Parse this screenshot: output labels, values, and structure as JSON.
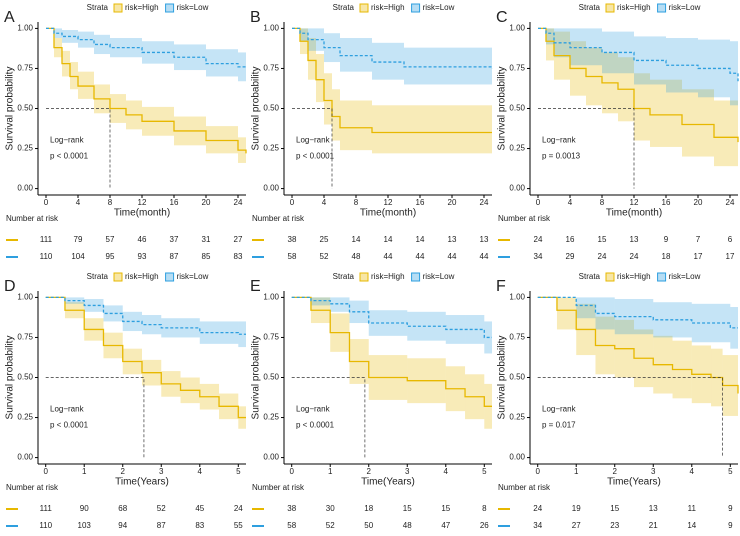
{
  "chart_data": [
    {
      "type": "line",
      "panel": "A",
      "legend_title": "Strata",
      "xlabel": "Time(month)",
      "ylabel": "Survival probability",
      "xlim": [
        -1,
        25
      ],
      "ylim": [
        -0.04,
        1.04
      ],
      "xticks": [
        0,
        4,
        8,
        12,
        16,
        20,
        24
      ],
      "yticks": [
        {
          "value": 0,
          "label": "0.00"
        },
        {
          "value": 0.25,
          "label": "0.25"
        },
        {
          "value": 0.5,
          "label": "0.50"
        },
        {
          "value": 0.75,
          "label": "0.75"
        },
        {
          "value": 1,
          "label": "1.00"
        }
      ],
      "test": "Log−rank",
      "pvalue": "p < 0.0001",
      "median": {
        "x": 8,
        "y": 0.5
      },
      "risk_title": "Number at risk",
      "series": [
        {
          "name": "risk=High",
          "color": "#E7B800",
          "x": [
            0,
            1,
            2,
            3,
            4,
            6,
            8,
            10,
            12,
            16,
            20,
            24,
            25
          ],
          "values": [
            1,
            0.88,
            0.78,
            0.7,
            0.64,
            0.56,
            0.5,
            0.46,
            0.42,
            0.36,
            0.3,
            0.24,
            0.22
          ],
          "lower": [
            1,
            0.82,
            0.7,
            0.62,
            0.56,
            0.47,
            0.41,
            0.37,
            0.33,
            0.27,
            0.22,
            0.16,
            0.15
          ],
          "upper": [
            1,
            0.94,
            0.86,
            0.79,
            0.73,
            0.65,
            0.59,
            0.55,
            0.51,
            0.45,
            0.39,
            0.32,
            0.3
          ],
          "risk": [
            111,
            79,
            57,
            46,
            37,
            31,
            27
          ]
        },
        {
          "name": "risk=Low",
          "color": "#2E9FDF",
          "x": [
            0,
            1,
            2,
            4,
            6,
            8,
            12,
            16,
            20,
            24,
            25
          ],
          "values": [
            1,
            0.97,
            0.95,
            0.93,
            0.9,
            0.88,
            0.85,
            0.82,
            0.78,
            0.76,
            0.76
          ],
          "lower": [
            1,
            0.94,
            0.91,
            0.88,
            0.84,
            0.82,
            0.78,
            0.74,
            0.7,
            0.67,
            0.67
          ],
          "upper": [
            1,
            1,
            0.99,
            0.98,
            0.96,
            0.94,
            0.92,
            0.9,
            0.87,
            0.85,
            0.85
          ],
          "risk": [
            110,
            104,
            95,
            93,
            87,
            85,
            83
          ]
        }
      ]
    },
    {
      "type": "line",
      "panel": "B",
      "legend_title": "Strata",
      "xlabel": "Time(month)",
      "ylabel": "Survival probability",
      "xlim": [
        -1,
        25
      ],
      "ylim": [
        -0.04,
        1.04
      ],
      "xticks": [
        0,
        4,
        8,
        12,
        16,
        20,
        24
      ],
      "yticks": [
        {
          "value": 0,
          "label": "0.00"
        },
        {
          "value": 0.25,
          "label": "0.25"
        },
        {
          "value": 0.5,
          "label": "0.50"
        },
        {
          "value": 0.75,
          "label": "0.75"
        },
        {
          "value": 1,
          "label": "1.00"
        }
      ],
      "test": "Log−rank",
      "pvalue": "p < 0.0001",
      "median": {
        "x": 5,
        "y": 0.5
      },
      "risk_title": "Number at risk",
      "series": [
        {
          "name": "risk=High",
          "color": "#E7B800",
          "x": [
            0,
            1,
            2,
            3,
            4,
            5,
            6,
            10,
            24,
            25
          ],
          "values": [
            1,
            0.92,
            0.8,
            0.68,
            0.55,
            0.45,
            0.38,
            0.35,
            0.35,
            0.35
          ],
          "lower": [
            1,
            0.84,
            0.68,
            0.54,
            0.4,
            0.3,
            0.24,
            0.22,
            0.22,
            0.22
          ],
          "upper": [
            1,
            1,
            0.94,
            0.84,
            0.72,
            0.62,
            0.55,
            0.52,
            0.52,
            0.52
          ],
          "risk": [
            38,
            25,
            14,
            14,
            14,
            13,
            13
          ]
        },
        {
          "name": "risk=Low",
          "color": "#2E9FDF",
          "x": [
            0,
            1,
            2,
            4,
            6,
            10,
            14,
            24,
            25
          ],
          "values": [
            1,
            0.97,
            0.93,
            0.88,
            0.83,
            0.79,
            0.76,
            0.76,
            0.75
          ],
          "lower": [
            1,
            0.92,
            0.86,
            0.79,
            0.73,
            0.68,
            0.65,
            0.65,
            0.64
          ],
          "upper": [
            1,
            1,
            1,
            0.97,
            0.94,
            0.91,
            0.88,
            0.88,
            0.87
          ],
          "risk": [
            58,
            52,
            48,
            44,
            44,
            44,
            44
          ]
        }
      ]
    },
    {
      "type": "line",
      "panel": "C",
      "legend_title": "Strata",
      "xlabel": "Time(month)",
      "ylabel": "Survival probability",
      "xlim": [
        -1,
        25
      ],
      "ylim": [
        -0.04,
        1.04
      ],
      "xticks": [
        0,
        4,
        8,
        12,
        16,
        20,
        24
      ],
      "yticks": [
        {
          "value": 0,
          "label": "0.00"
        },
        {
          "value": 0.25,
          "label": "0.25"
        },
        {
          "value": 0.5,
          "label": "0.50"
        },
        {
          "value": 0.75,
          "label": "0.75"
        },
        {
          "value": 1,
          "label": "1.00"
        }
      ],
      "test": "Log−rank",
      "pvalue": "p = 0.0013",
      "median": {
        "x": 12,
        "y": 0.5
      },
      "risk_title": "Number at risk",
      "series": [
        {
          "name": "risk=High",
          "color": "#E7B800",
          "x": [
            0,
            1,
            2,
            4,
            6,
            8,
            10,
            12,
            14,
            18,
            22,
            25
          ],
          "values": [
            1,
            0.92,
            0.83,
            0.75,
            0.7,
            0.66,
            0.62,
            0.5,
            0.46,
            0.4,
            0.32,
            0.29
          ],
          "lower": [
            1,
            0.8,
            0.68,
            0.58,
            0.52,
            0.47,
            0.42,
            0.3,
            0.26,
            0.2,
            0.14,
            0.1
          ],
          "upper": [
            1,
            1,
            0.98,
            0.92,
            0.88,
            0.85,
            0.82,
            0.72,
            0.68,
            0.62,
            0.55,
            0.52
          ],
          "risk": [
            24,
            16,
            15,
            13,
            9,
            7,
            6
          ]
        },
        {
          "name": "risk=Low",
          "color": "#2E9FDF",
          "x": [
            0,
            1,
            2,
            4,
            8,
            12,
            16,
            20,
            24,
            25
          ],
          "values": [
            1,
            0.97,
            0.91,
            0.88,
            0.85,
            0.8,
            0.77,
            0.75,
            0.72,
            0.67
          ],
          "lower": [
            1,
            0.9,
            0.82,
            0.77,
            0.72,
            0.65,
            0.6,
            0.57,
            0.52,
            0.45
          ],
          "upper": [
            1,
            1,
            1,
            1,
            0.98,
            0.95,
            0.94,
            0.93,
            0.92,
            0.9
          ],
          "risk": [
            34,
            29,
            24,
            24,
            18,
            17,
            17
          ]
        }
      ]
    },
    {
      "type": "line",
      "panel": "D",
      "legend_title": "Strata",
      "xlabel": "Time(Years)",
      "ylabel": "Survival probability",
      "xlim": [
        -0.2,
        5.2
      ],
      "ylim": [
        -0.04,
        1.04
      ],
      "xticks": [
        0,
        1,
        2,
        3,
        4,
        5
      ],
      "yticks": [
        {
          "value": 0,
          "label": "0.00"
        },
        {
          "value": 0.25,
          "label": "0.25"
        },
        {
          "value": 0.5,
          "label": "0.50"
        },
        {
          "value": 0.75,
          "label": "0.75"
        },
        {
          "value": 1,
          "label": "1.00"
        }
      ],
      "test": "Log−rank",
      "pvalue": "p < 0.0001",
      "median": {
        "x": 2.55,
        "y": 0.5
      },
      "risk_title": "Number at risk",
      "series": [
        {
          "name": "risk=High",
          "color": "#E7B800",
          "x": [
            0,
            0.5,
            1,
            1.5,
            2,
            2.5,
            3,
            3.5,
            4,
            4.5,
            5,
            5.2
          ],
          "values": [
            1,
            0.92,
            0.8,
            0.7,
            0.6,
            0.53,
            0.46,
            0.42,
            0.38,
            0.32,
            0.25,
            0.25
          ],
          "lower": [
            1,
            0.87,
            0.73,
            0.62,
            0.52,
            0.45,
            0.38,
            0.34,
            0.3,
            0.24,
            0.18,
            0.18
          ],
          "upper": [
            1,
            0.97,
            0.87,
            0.78,
            0.68,
            0.61,
            0.54,
            0.5,
            0.46,
            0.4,
            0.32,
            0.32
          ],
          "risk": [
            111,
            90,
            68,
            52,
            45,
            24
          ]
        },
        {
          "name": "risk=Low",
          "color": "#2E9FDF",
          "x": [
            0,
            0.5,
            1,
            1.5,
            2,
            2.5,
            3,
            4,
            5,
            5.2
          ],
          "values": [
            1,
            0.98,
            0.95,
            0.9,
            0.85,
            0.83,
            0.81,
            0.78,
            0.77,
            0.77
          ],
          "lower": [
            1,
            0.96,
            0.91,
            0.85,
            0.79,
            0.77,
            0.75,
            0.71,
            0.69,
            0.69
          ],
          "upper": [
            1,
            1,
            0.99,
            0.95,
            0.91,
            0.89,
            0.87,
            0.85,
            0.85,
            0.85
          ],
          "risk": [
            110,
            103,
            94,
            87,
            83,
            55
          ]
        }
      ]
    },
    {
      "type": "line",
      "panel": "E",
      "legend_title": "Strata",
      "xlabel": "Time(Years)",
      "ylabel": "Survival probability",
      "xlim": [
        -0.2,
        5.2
      ],
      "ylim": [
        -0.04,
        1.04
      ],
      "xticks": [
        0,
        1,
        2,
        3,
        4,
        5
      ],
      "yticks": [
        {
          "value": 0,
          "label": "0.00"
        },
        {
          "value": 0.25,
          "label": "0.25"
        },
        {
          "value": 0.5,
          "label": "0.50"
        },
        {
          "value": 0.75,
          "label": "0.75"
        },
        {
          "value": 1,
          "label": "1.00"
        }
      ],
      "test": "Log−rank",
      "pvalue": "p < 0.0001",
      "median": {
        "x": 1.9,
        "y": 0.5
      },
      "risk_title": "Number at risk",
      "series": [
        {
          "name": "risk=High",
          "color": "#E7B800",
          "x": [
            0,
            0.5,
            1,
            1.5,
            2,
            2.5,
            3,
            4,
            4.5,
            5,
            5.2
          ],
          "values": [
            1,
            0.92,
            0.78,
            0.6,
            0.5,
            0.5,
            0.48,
            0.43,
            0.38,
            0.32,
            0.32
          ],
          "lower": [
            1,
            0.84,
            0.66,
            0.46,
            0.36,
            0.36,
            0.34,
            0.29,
            0.24,
            0.18,
            0.18
          ],
          "upper": [
            1,
            1,
            0.9,
            0.74,
            0.64,
            0.64,
            0.62,
            0.57,
            0.52,
            0.46,
            0.46
          ],
          "risk": [
            38,
            30,
            18,
            15,
            15,
            8
          ]
        },
        {
          "name": "risk=Low",
          "color": "#2E9FDF",
          "x": [
            0,
            0.5,
            1,
            1.5,
            2,
            3,
            4,
            4.5,
            5,
            5.2
          ],
          "values": [
            1,
            0.98,
            0.96,
            0.91,
            0.84,
            0.82,
            0.8,
            0.8,
            0.75,
            0.75
          ],
          "lower": [
            1,
            0.95,
            0.91,
            0.84,
            0.76,
            0.73,
            0.71,
            0.71,
            0.65,
            0.65
          ],
          "upper": [
            1,
            1,
            1,
            0.98,
            0.92,
            0.91,
            0.89,
            0.89,
            0.85,
            0.85
          ],
          "risk": [
            58,
            52,
            50,
            48,
            47,
            26
          ]
        }
      ]
    },
    {
      "type": "line",
      "panel": "F",
      "legend_title": "Strata",
      "xlabel": "Time(Years)",
      "ylabel": "Survival probability",
      "xlim": [
        -0.2,
        5.2
      ],
      "ylim": [
        -0.04,
        1.04
      ],
      "xticks": [
        0,
        1,
        2,
        3,
        4,
        5
      ],
      "yticks": [
        {
          "value": 0,
          "label": "0.00"
        },
        {
          "value": 0.25,
          "label": "0.25"
        },
        {
          "value": 0.5,
          "label": "0.50"
        },
        {
          "value": 0.75,
          "label": "0.75"
        },
        {
          "value": 1,
          "label": "1.00"
        }
      ],
      "test": "Log−rank",
      "pvalue": "p = 0.017",
      "median": {
        "x": 4.8,
        "y": 0.5
      },
      "risk_title": "Number at risk",
      "series": [
        {
          "name": "risk=High",
          "color": "#E7B800",
          "x": [
            0,
            0.5,
            1,
            1.5,
            2,
            2.5,
            3,
            3.5,
            4,
            4.5,
            4.8,
            5.2
          ],
          "values": [
            1,
            0.92,
            0.8,
            0.7,
            0.68,
            0.62,
            0.58,
            0.55,
            0.52,
            0.5,
            0.45,
            0.4
          ],
          "lower": [
            1,
            0.8,
            0.64,
            0.52,
            0.5,
            0.44,
            0.4,
            0.37,
            0.34,
            0.32,
            0.26,
            0.22
          ],
          "upper": [
            1,
            1,
            0.96,
            0.88,
            0.86,
            0.8,
            0.76,
            0.73,
            0.7,
            0.68,
            0.64,
            0.58
          ],
          "risk": [
            24,
            19,
            15,
            13,
            11,
            9
          ]
        },
        {
          "name": "risk=Low",
          "color": "#2E9FDF",
          "x": [
            0,
            0.5,
            1,
            1.5,
            2,
            3,
            4,
            5,
            5.2
          ],
          "values": [
            1,
            1,
            0.95,
            0.9,
            0.88,
            0.86,
            0.84,
            0.81,
            0.81
          ],
          "lower": [
            1,
            1,
            0.87,
            0.8,
            0.77,
            0.75,
            0.72,
            0.68,
            0.68
          ],
          "upper": [
            1,
            1,
            1,
            1,
            0.99,
            0.97,
            0.96,
            0.94,
            0.94
          ],
          "risk": [
            34,
            27,
            23,
            21,
            14,
            9
          ]
        }
      ]
    }
  ]
}
